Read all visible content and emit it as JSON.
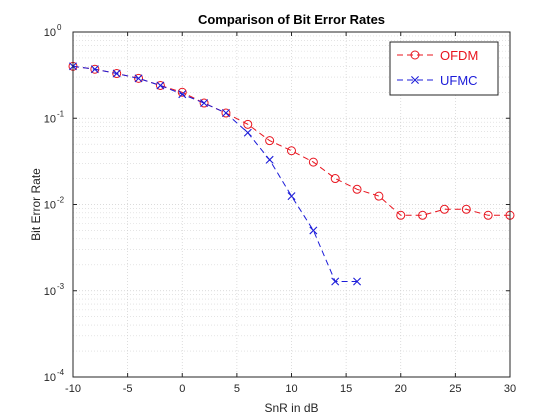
{
  "chart_data": {
    "type": "line",
    "title": "Comparison of Bit Error Rates",
    "xlabel": "SnR in dB",
    "ylabel": "Bit Error Rate",
    "xlim": [
      -10,
      30
    ],
    "ylim": [
      0.0001,
      1
    ],
    "yscale": "log",
    "grid": true,
    "minor_grid": true,
    "x_ticks": [
      -10,
      -5,
      0,
      5,
      10,
      15,
      20,
      25,
      30
    ],
    "x_tick_labels": [
      "-10",
      "-5",
      "0",
      "5",
      "10",
      "15",
      "20",
      "25",
      "30"
    ],
    "y_ticks": [
      0.0001,
      0.001,
      0.01,
      0.1,
      1
    ],
    "y_tick_labels": [
      {
        "base": "10",
        "exp": "-4"
      },
      {
        "base": "10",
        "exp": "-3"
      },
      {
        "base": "10",
        "exp": "-2"
      },
      {
        "base": "10",
        "exp": "-1"
      },
      {
        "base": "10",
        "exp": "0"
      }
    ],
    "legend_position": "top-right",
    "series": [
      {
        "name": "OFDM",
        "color": "#e8141e",
        "marker": "circle",
        "line_style": "dashed",
        "x": [
          -10,
          -8,
          -6,
          -4,
          -2,
          0,
          2,
          4,
          6,
          8,
          10,
          12,
          14,
          16,
          18,
          20,
          22,
          24,
          26,
          28,
          30
        ],
        "y": [
          0.4,
          0.37,
          0.33,
          0.29,
          0.24,
          0.2,
          0.15,
          0.115,
          0.085,
          0.055,
          0.042,
          0.031,
          0.02,
          0.015,
          0.0125,
          0.0075,
          0.0075,
          0.0088,
          0.0088,
          0.0075,
          0.0075
        ]
      },
      {
        "name": "UFMC",
        "color": "#1c1cd9",
        "marker": "x",
        "line_style": "dashed",
        "x": [
          -10,
          -8,
          -6,
          -4,
          -2,
          0,
          2,
          4,
          6,
          8,
          10,
          12,
          14,
          16
        ],
        "y": [
          0.4,
          0.37,
          0.33,
          0.29,
          0.24,
          0.19,
          0.15,
          0.115,
          0.068,
          0.033,
          0.0125,
          0.005,
          0.00128,
          0.00128
        ]
      }
    ]
  }
}
